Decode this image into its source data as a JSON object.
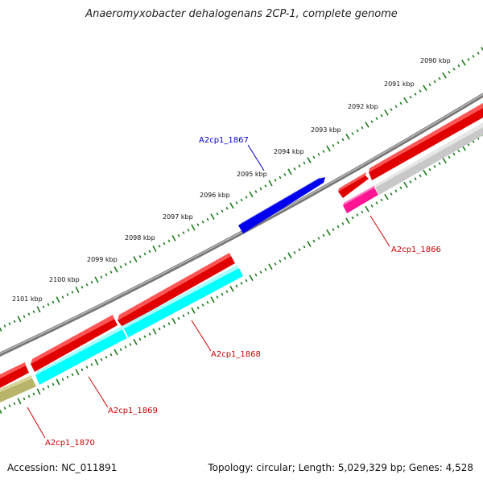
{
  "title": "Anaeromyxobacter dehalogenans 2CP-1, complete genome",
  "accession": "Accession: NC_011891",
  "summary": "Topology: circular; Length: 5,029,329 bp; Genes: 4,528",
  "ticks": [
    "2090 kbp",
    "2091 kbp",
    "2092 kbp",
    "2093 kbp",
    "2094 kbp",
    "2095 kbp",
    "2096 kbp",
    "2097 kbp",
    "2098 kbp",
    "2099 kbp",
    "2100 kbp",
    "2101 kbp"
  ],
  "genes": [
    {
      "label": "A2cp1_1867",
      "color": "#0000cc"
    },
    {
      "label": "A2cp1_1866",
      "color": "#cc0000"
    },
    {
      "label": "A2cp1_1868",
      "color": "#cc0000"
    },
    {
      "label": "A2cp1_1869",
      "color": "#cc0000"
    },
    {
      "label": "A2cp1_1870",
      "color": "#cc0000"
    }
  ],
  "colors": {
    "backbone": "#808080",
    "cds": "#ff0000",
    "gene_blue": "#0000ff",
    "cyan": "#00ffff",
    "magenta": "#ff1493",
    "olive": "#b8b46a",
    "gray_feature": "#c8c8c8",
    "tick": "#1a7a1a"
  }
}
